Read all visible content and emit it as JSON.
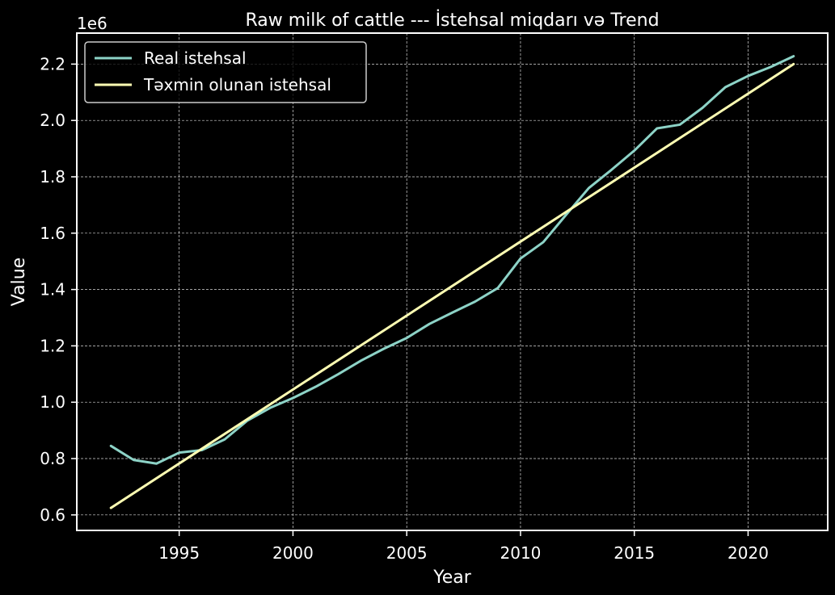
{
  "chart_data": {
    "type": "line",
    "title": "Raw milk of cattle --- İstehsal miqdarı və Trend",
    "xlabel": "Year",
    "ylabel": "Value",
    "y_offset_label": "1e6",
    "xlim": [
      1990.5,
      2023.5
    ],
    "ylim": [
      0.545,
      2.31
    ],
    "y_scale_factor": 1000000,
    "x_ticks": [
      1995,
      2000,
      2005,
      2010,
      2015,
      2020
    ],
    "x_tick_labels": [
      "1995",
      "2000",
      "2005",
      "2010",
      "2015",
      "2020"
    ],
    "y_ticks": [
      0.6,
      0.8,
      1.0,
      1.2,
      1.4,
      1.6,
      1.8,
      2.0,
      2.2
    ],
    "y_tick_labels": [
      "0.6",
      "0.8",
      "1.0",
      "1.2",
      "1.4",
      "1.6",
      "1.8",
      "2.0",
      "2.2"
    ],
    "grid": true,
    "legend_position": "upper-left",
    "background_color": "#000000",
    "series": [
      {
        "name": "Real istehsal",
        "color": "#8dd3c7",
        "x": [
          1992,
          1993,
          1994,
          1995,
          1996,
          1997,
          1998,
          1999,
          2000,
          2001,
          2002,
          2003,
          2004,
          2005,
          2006,
          2007,
          2008,
          2009,
          2010,
          2011,
          2012,
          2013,
          2014,
          2015,
          2016,
          2017,
          2018,
          2019,
          2020,
          2021,
          2022
        ],
        "values": [
          0.845,
          0.795,
          0.782,
          0.821,
          0.83,
          0.868,
          0.935,
          0.98,
          1.015,
          1.055,
          1.1,
          1.148,
          1.19,
          1.228,
          1.278,
          1.318,
          1.357,
          1.405,
          1.51,
          1.568,
          1.665,
          1.76,
          1.825,
          1.893,
          1.972,
          1.985,
          2.045,
          2.118,
          2.158,
          2.19,
          2.228
        ]
      },
      {
        "name": "Təxmin olunan istehsal",
        "color": "#ffffb3",
        "x": [
          1992,
          2022
        ],
        "values": [
          0.625,
          2.2
        ]
      }
    ]
  }
}
